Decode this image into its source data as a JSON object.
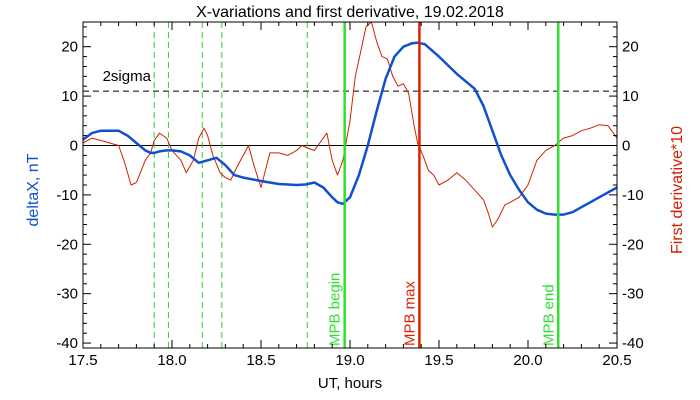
{
  "chart_data": {
    "type": "line",
    "title": "X-variations and first derivative, 19.02.2018",
    "xlabel": "UT, hours",
    "ylabel_left": "deltaX, nT",
    "ylabel_right": "First derivative*10",
    "xlim": [
      17.5,
      20.5
    ],
    "ylim": [
      -41,
      25
    ],
    "xticks": [
      17.5,
      18.0,
      18.5,
      19.0,
      19.5,
      20.0,
      20.5
    ],
    "xtick_labels": [
      "17.5",
      "18.0",
      "18.5",
      "19.0",
      "19.5",
      "20.0",
      "20.5"
    ],
    "yticks": [
      -40,
      -30,
      -20,
      -10,
      0,
      10,
      20
    ],
    "ytick_labels": [
      "-40",
      "-30",
      "-20",
      "-10",
      "0",
      "10",
      "20"
    ],
    "colors": {
      "deltaX": "#1050d0",
      "derivative": "#d02000",
      "dashed_markers": "#30d030",
      "mpb_begin": "#30e030",
      "mpb_max": "#e02000",
      "mpb_end": "#30e030",
      "sigma_line": "#000000",
      "zero_line": "#000000"
    },
    "series": [
      {
        "name": "deltaX, nT",
        "x": [
          17.5,
          17.55,
          17.6,
          17.65,
          17.7,
          17.75,
          17.8,
          17.85,
          17.88,
          17.9,
          17.93,
          17.97,
          18.0,
          18.05,
          18.1,
          18.15,
          18.2,
          18.25,
          18.3,
          18.35,
          18.4,
          18.5,
          18.6,
          18.7,
          18.75,
          18.8,
          18.85,
          18.9,
          18.93,
          18.96,
          19.0,
          19.05,
          19.1,
          19.15,
          19.2,
          19.25,
          19.3,
          19.35,
          19.38,
          19.42,
          19.5,
          19.6,
          19.7,
          19.75,
          19.8,
          19.85,
          19.9,
          19.95,
          20.0,
          20.05,
          20.1,
          20.15,
          20.2,
          20.25,
          20.3,
          20.35,
          20.4,
          20.45,
          20.5
        ],
        "values": [
          1.2,
          2.5,
          3.0,
          3.0,
          3.0,
          2.0,
          0.5,
          -1.0,
          -1.5,
          -1.5,
          -1.2,
          -1.0,
          -1.0,
          -1.2,
          -2.0,
          -3.5,
          -3.0,
          -2.5,
          -4.0,
          -6.0,
          -6.5,
          -7.2,
          -7.8,
          -8.0,
          -7.9,
          -7.5,
          -8.5,
          -10.5,
          -11.5,
          -11.8,
          -10.5,
          -6.0,
          0.0,
          7.0,
          13.5,
          18.0,
          20.0,
          20.7,
          20.8,
          20.5,
          18.0,
          14.5,
          11.5,
          8.0,
          3.0,
          -2.0,
          -6.0,
          -9.0,
          -11.5,
          -13.0,
          -13.8,
          -14.0,
          -14.0,
          -13.5,
          -12.5,
          -11.5,
          -10.5,
          -9.5,
          -8.5
        ]
      },
      {
        "name": "First derivative*10",
        "x": [
          17.5,
          17.55,
          17.6,
          17.65,
          17.7,
          17.73,
          17.77,
          17.8,
          17.85,
          17.88,
          17.9,
          17.93,
          17.97,
          18.0,
          18.05,
          18.08,
          18.12,
          18.15,
          18.18,
          18.2,
          18.23,
          18.27,
          18.3,
          18.33,
          18.37,
          18.4,
          18.43,
          18.46,
          18.5,
          18.55,
          18.6,
          18.65,
          18.7,
          18.73,
          18.76,
          18.8,
          18.83,
          18.87,
          18.9,
          18.93,
          18.96,
          19.0,
          19.03,
          19.06,
          19.09,
          19.12,
          19.15,
          19.18,
          19.21,
          19.24,
          19.27,
          19.3,
          19.33,
          19.36,
          19.38,
          19.41,
          19.44,
          19.47,
          19.5,
          19.55,
          19.6,
          19.65,
          19.7,
          19.75,
          19.78,
          19.8,
          19.83,
          19.87,
          19.9,
          19.95,
          20.0,
          20.05,
          20.1,
          20.15,
          20.2,
          20.25,
          20.3,
          20.35,
          20.4,
          20.45,
          20.5
        ],
        "values": [
          0.5,
          1.5,
          1.0,
          0.5,
          0.0,
          -3.0,
          -8.0,
          -7.5,
          -3.0,
          -1.5,
          1.0,
          2.5,
          1.5,
          -1.0,
          -3.0,
          -5.5,
          -3.0,
          1.5,
          3.5,
          2.0,
          -2.0,
          -5.5,
          -6.5,
          -7.0,
          -4.0,
          -2.0,
          0.0,
          -4.0,
          -8.5,
          -1.5,
          -1.5,
          -2.0,
          -1.0,
          0.0,
          -0.5,
          -1.0,
          0.5,
          2.5,
          -3.0,
          -6.0,
          -3.0,
          5.0,
          14.0,
          19.0,
          24.0,
          25.0,
          21.0,
          18.0,
          17.5,
          14.0,
          12.0,
          12.5,
          10.5,
          4.0,
          0.5,
          -2.0,
          -5.0,
          -6.0,
          -8.0,
          -7.0,
          -5.5,
          -7.0,
          -9.0,
          -11.0,
          -14.0,
          -16.5,
          -15.0,
          -12.0,
          -11.5,
          -10.5,
          -8.0,
          -3.0,
          -1.0,
          0.0,
          1.5,
          2.0,
          3.0,
          3.5,
          4.2,
          4.0,
          1.5
        ]
      }
    ],
    "reference_lines": [
      {
        "type": "horizontal",
        "y": 0,
        "style": "solid"
      },
      {
        "type": "horizontal",
        "y": 11,
        "style": "dashed",
        "label": "2sigma"
      }
    ],
    "dashed_vertical_lines_x": [
      17.9,
      17.98,
      18.17,
      18.28,
      18.76
    ],
    "event_lines": [
      {
        "x": 18.97,
        "label": "MPB begin"
      },
      {
        "x": 19.39,
        "label": "MPB max"
      },
      {
        "x": 20.17,
        "label": "MPB end"
      }
    ]
  }
}
